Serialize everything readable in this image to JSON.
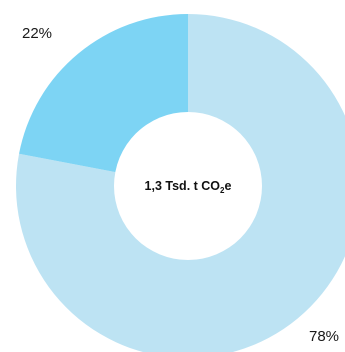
{
  "chart_data": {
    "type": "pie",
    "variant": "donut",
    "slices": [
      {
        "label": "",
        "value": 78,
        "value_label": "78%",
        "color": "#bde3f3"
      },
      {
        "label": "",
        "value": 22,
        "value_label": "22%",
        "color": "#7dd4f4"
      }
    ],
    "center_text": {
      "main": "1,3 Tsd. t CO",
      "subscript": "2",
      "suffix": "e"
    },
    "legend": false,
    "grid": false
  }
}
